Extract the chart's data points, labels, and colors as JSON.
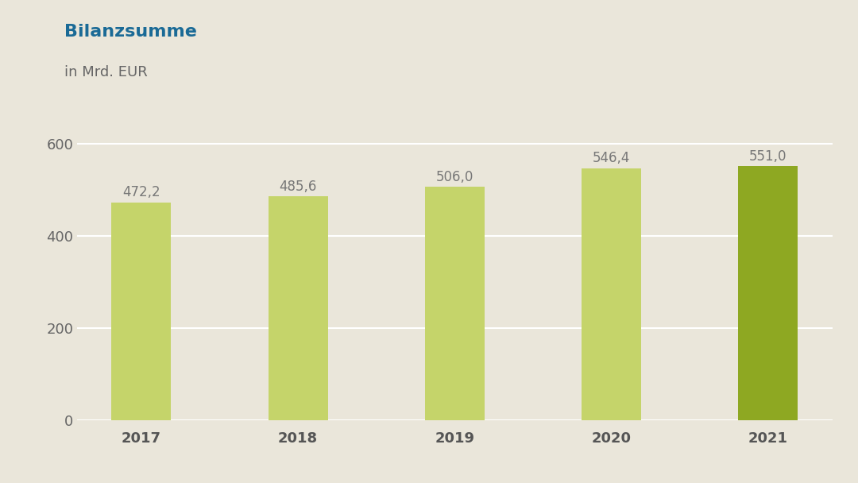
{
  "title": "Bilanzsumme",
  "subtitle": "in Mrd. EUR",
  "title_color": "#1a6a96",
  "subtitle_color": "#666666",
  "background_color": "#eae6da",
  "categories": [
    "2017",
    "2018",
    "2019",
    "2020",
    "2021"
  ],
  "values": [
    472.2,
    485.6,
    506.0,
    546.4,
    551.0
  ],
  "bar_colors": [
    "#c5d46a",
    "#c5d46a",
    "#c5d46a",
    "#c5d46a",
    "#8ea822"
  ],
  "label_color": "#777777",
  "ytick_color": "#666666",
  "xtick_color": "#555555",
  "grid_color": "#ffffff",
  "ylim": [
    0,
    660
  ],
  "yticks": [
    0,
    200,
    400,
    600
  ],
  "title_fontsize": 16,
  "subtitle_fontsize": 13,
  "label_fontsize": 12,
  "tick_fontsize": 13,
  "bar_width": 0.38
}
